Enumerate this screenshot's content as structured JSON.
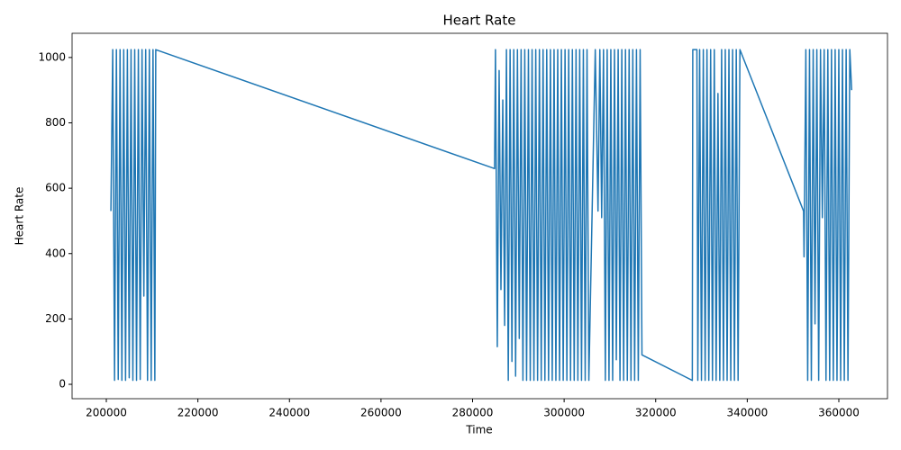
{
  "chart_data": {
    "type": "line",
    "title": "Heart Rate",
    "x_label": "Time",
    "y_label": "Heart Rate",
    "x": [
      201000,
      201400,
      201800,
      202200,
      202600,
      203000,
      203400,
      203800,
      204200,
      204600,
      205000,
      205400,
      205800,
      206200,
      206600,
      207000,
      207400,
      207800,
      208200,
      208600,
      209000,
      209400,
      209800,
      210200,
      210600,
      210800,
      284800,
      285000,
      285400,
      285800,
      286200,
      286600,
      287000,
      287400,
      287800,
      288200,
      288600,
      289000,
      289400,
      289800,
      290200,
      290600,
      291000,
      291400,
      291800,
      292200,
      292600,
      293000,
      293400,
      293800,
      294200,
      294600,
      295000,
      295400,
      295800,
      296200,
      296600,
      297000,
      297400,
      297800,
      298200,
      298600,
      299000,
      299400,
      299800,
      300200,
      300600,
      301000,
      301400,
      301800,
      302200,
      302600,
      303000,
      303400,
      303800,
      304200,
      304600,
      305000,
      305400,
      306800,
      307400,
      307800,
      308200,
      308600,
      309000,
      309400,
      309800,
      310200,
      310600,
      311000,
      311400,
      311800,
      312200,
      312600,
      313000,
      313400,
      313800,
      314200,
      314600,
      315000,
      315400,
      315800,
      316200,
      316600,
      317000,
      328000,
      328100,
      329000,
      329200,
      329600,
      330000,
      330400,
      330800,
      331200,
      331600,
      332000,
      332400,
      332800,
      333200,
      333600,
      334000,
      334400,
      334800,
      335200,
      335600,
      336000,
      336400,
      336800,
      337200,
      337600,
      338000,
      338400,
      352300,
      352400,
      352800,
      353200,
      353600,
      354000,
      354400,
      354800,
      355200,
      355600,
      356000,
      356400,
      356800,
      357200,
      357600,
      358000,
      358400,
      358800,
      359200,
      359600,
      360000,
      360400,
      360800,
      361200,
      361600,
      362000,
      362400,
      362800
    ],
    "series": [
      {
        "name": "Heart Rate",
        "color": "#1f77b4",
        "values": [
          530,
          1024,
          12,
          1024,
          15,
          1024,
          12,
          1024,
          12,
          1024,
          20,
          1024,
          12,
          1024,
          12,
          1024,
          15,
          1024,
          270,
          1024,
          12,
          1024,
          12,
          1024,
          12,
          1024,
          660,
          1024,
          115,
          960,
          290,
          870,
          180,
          1024,
          12,
          1024,
          70,
          1024,
          25,
          1024,
          140,
          1024,
          12,
          1024,
          12,
          1024,
          12,
          1024,
          12,
          1024,
          12,
          1024,
          12,
          1024,
          12,
          1024,
          12,
          1024,
          12,
          1024,
          12,
          1024,
          12,
          1024,
          12,
          1024,
          12,
          1024,
          12,
          1024,
          12,
          1024,
          12,
          1024,
          12,
          1024,
          12,
          1024,
          12,
          1024,
          530,
          1024,
          510,
          1024,
          12,
          1024,
          12,
          1024,
          12,
          1024,
          75,
          1024,
          12,
          1024,
          12,
          1024,
          12,
          1024,
          12,
          1024,
          12,
          1024,
          12,
          1024,
          90,
          12,
          1024,
          1024,
          12,
          1024,
          12,
          1024,
          12,
          1024,
          12,
          1024,
          12,
          1024,
          12,
          890,
          12,
          1024,
          12,
          1024,
          12,
          1024,
          12,
          1024,
          12,
          1024,
          12,
          1024,
          530,
          390,
          1024,
          12,
          1024,
          12,
          1024,
          185,
          1024,
          12,
          1024,
          510,
          1024,
          12,
          1024,
          12,
          1024,
          12,
          1024,
          12,
          1024,
          12,
          1024,
          12,
          1024,
          12,
          1024,
          900
        ]
      }
    ],
    "xlim": [
      192520,
      370630
    ],
    "ylim": [
      -44,
      1074
    ],
    "xticks": [
      200000,
      220000,
      240000,
      260000,
      280000,
      300000,
      320000,
      340000,
      360000
    ],
    "yticks": [
      0,
      200,
      400,
      600,
      800,
      1000
    ]
  }
}
